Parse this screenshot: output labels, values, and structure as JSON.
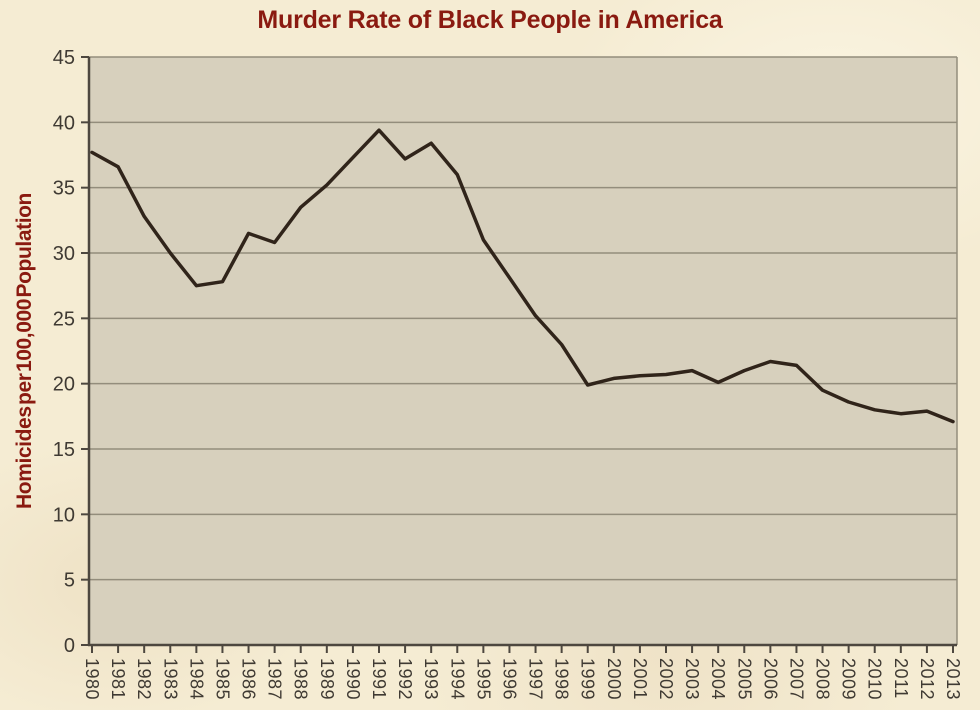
{
  "page": {
    "background_color": "#f5ecd3"
  },
  "chart_data": {
    "type": "line",
    "title": "Murder Rate of Black People in America",
    "ylabel": "Homicides per 100,000 Population",
    "xlabel": "",
    "categories": [
      "1980",
      "1981",
      "1982",
      "1983",
      "1984",
      "1985",
      "1986",
      "1987",
      "1988",
      "1989",
      "1990",
      "1991",
      "1992",
      "1993",
      "1994",
      "1995",
      "1996",
      "1997",
      "1998",
      "1999",
      "2000",
      "2001",
      "2002",
      "2003",
      "2004",
      "2005",
      "2006",
      "2007",
      "2008",
      "2009",
      "2010",
      "2011",
      "2012",
      "2013"
    ],
    "values": [
      37.7,
      36.6,
      32.8,
      30.0,
      27.5,
      27.8,
      31.5,
      30.8,
      33.5,
      35.2,
      37.3,
      39.4,
      37.2,
      38.4,
      36.0,
      31.0,
      28.1,
      25.2,
      23.0,
      19.9,
      20.4,
      20.6,
      20.7,
      21.0,
      20.1,
      21.0,
      21.7,
      21.4,
      19.5,
      18.6,
      18.0,
      17.7,
      17.9,
      17.1
    ],
    "yticks": [
      0,
      5,
      10,
      15,
      20,
      25,
      30,
      35,
      40,
      45
    ],
    "ylim": [
      0,
      45
    ],
    "grid": true,
    "legend": "none",
    "colors": {
      "series": "#30241a",
      "title": "#8a1a10",
      "ylabel": "#8a1a10",
      "plot_background": "#d7d0bd",
      "page_background": "#f5ecd3",
      "gridline": "#938d7c",
      "axis": "#4d473f",
      "tick_text": "#3f3a33"
    }
  }
}
